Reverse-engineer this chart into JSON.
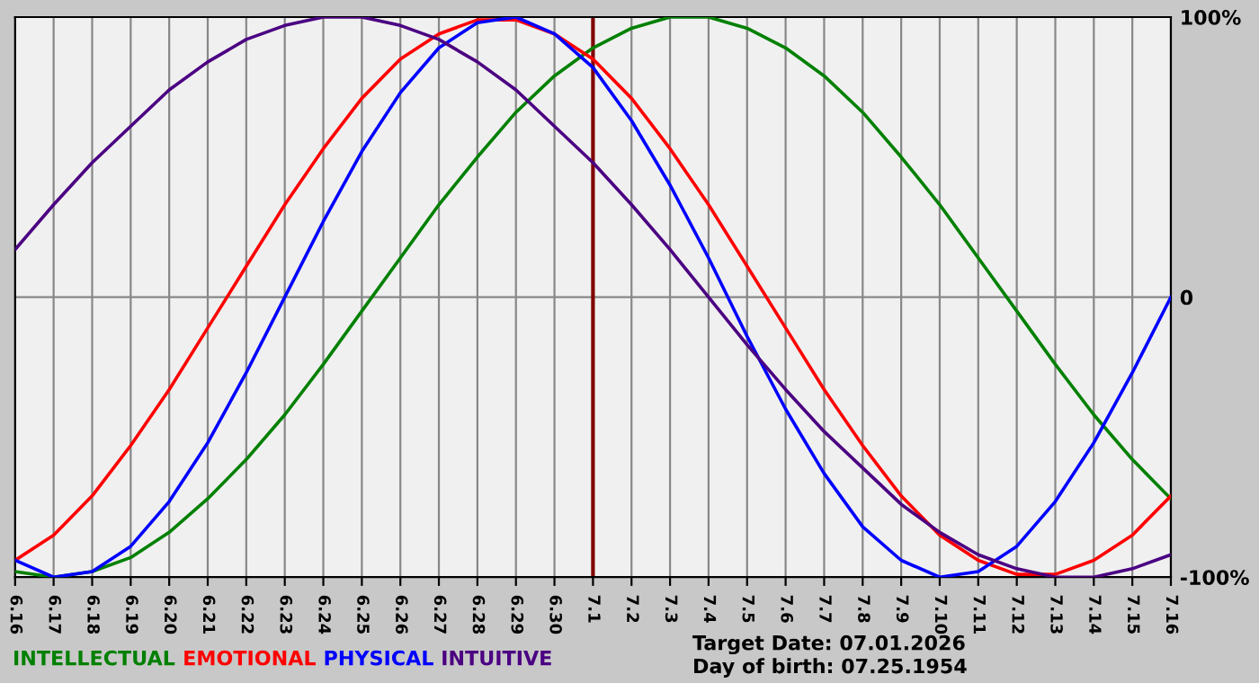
{
  "chart_data": {
    "type": "line",
    "categories": [
      "6.16",
      "6.17",
      "6.18",
      "6.19",
      "6.20",
      "6.21",
      "6.22",
      "6.23",
      "6.24",
      "6.25",
      "6.26",
      "6.27",
      "6.28",
      "6.29",
      "6.30",
      "7.1",
      "7.2",
      "7.3",
      "7.4",
      "7.5",
      "7.6",
      "7.7",
      "7.8",
      "7.9",
      "7.10",
      "7.11",
      "7.12",
      "7.13",
      "7.14",
      "7.15",
      "7.16"
    ],
    "series": [
      {
        "name": "INTELLECTUAL",
        "color": "#008000",
        "values": [
          -98,
          -100,
          -98,
          -93,
          -84,
          -72,
          -58,
          -42,
          -24,
          -5,
          14,
          33,
          50,
          66,
          79,
          89,
          96,
          100,
          100,
          96,
          89,
          79,
          66,
          50,
          33,
          14,
          -5,
          -24,
          -42,
          -58,
          -72
        ]
      },
      {
        "name": "EMOTIONAL",
        "color": "#ff0000",
        "values": [
          -94,
          -85,
          -71,
          -53,
          -33,
          -11,
          11,
          33,
          53,
          71,
          85,
          94,
          99,
          99,
          94,
          85,
          71,
          53,
          33,
          11,
          -11,
          -33,
          -53,
          -71,
          -85,
          -94,
          -99,
          -99,
          -94,
          -85,
          -71
        ]
      },
      {
        "name": "PHYSICAL",
        "color": "#0000ff",
        "values": [
          -94,
          -100,
          -98,
          -89,
          -73,
          -52,
          -27,
          0,
          27,
          52,
          73,
          89,
          98,
          100,
          94,
          82,
          63,
          40,
          14,
          -14,
          -40,
          -63,
          -82,
          -94,
          -100,
          -98,
          -89,
          -73,
          -52,
          -27,
          0
        ]
      },
      {
        "name": "INTUITIVE",
        "color": "#4b0082",
        "values": [
          17,
          33,
          48,
          61,
          74,
          84,
          92,
          97,
          100,
          100,
          97,
          92,
          84,
          74,
          61,
          48,
          33,
          17,
          0,
          -17,
          -33,
          -48,
          -61,
          -74,
          -84,
          -92,
          -97,
          -100,
          -100,
          -97,
          -92
        ]
      }
    ],
    "ylim": [
      -100,
      100
    ],
    "yticks": [
      {
        "value": 100,
        "label": "100%"
      },
      0,
      {
        "value": -100,
        "label": "-100%"
      }
    ],
    "ref_lines": [
      {
        "axis": "x",
        "value": "7.1",
        "color": "#800000"
      }
    ],
    "annotations": [
      "Target Date: 07.01.2026",
      "Day of birth: 07.25.1954"
    ],
    "grid": true,
    "legend": "bottom",
    "marker": "none",
    "line_style": "solid"
  }
}
